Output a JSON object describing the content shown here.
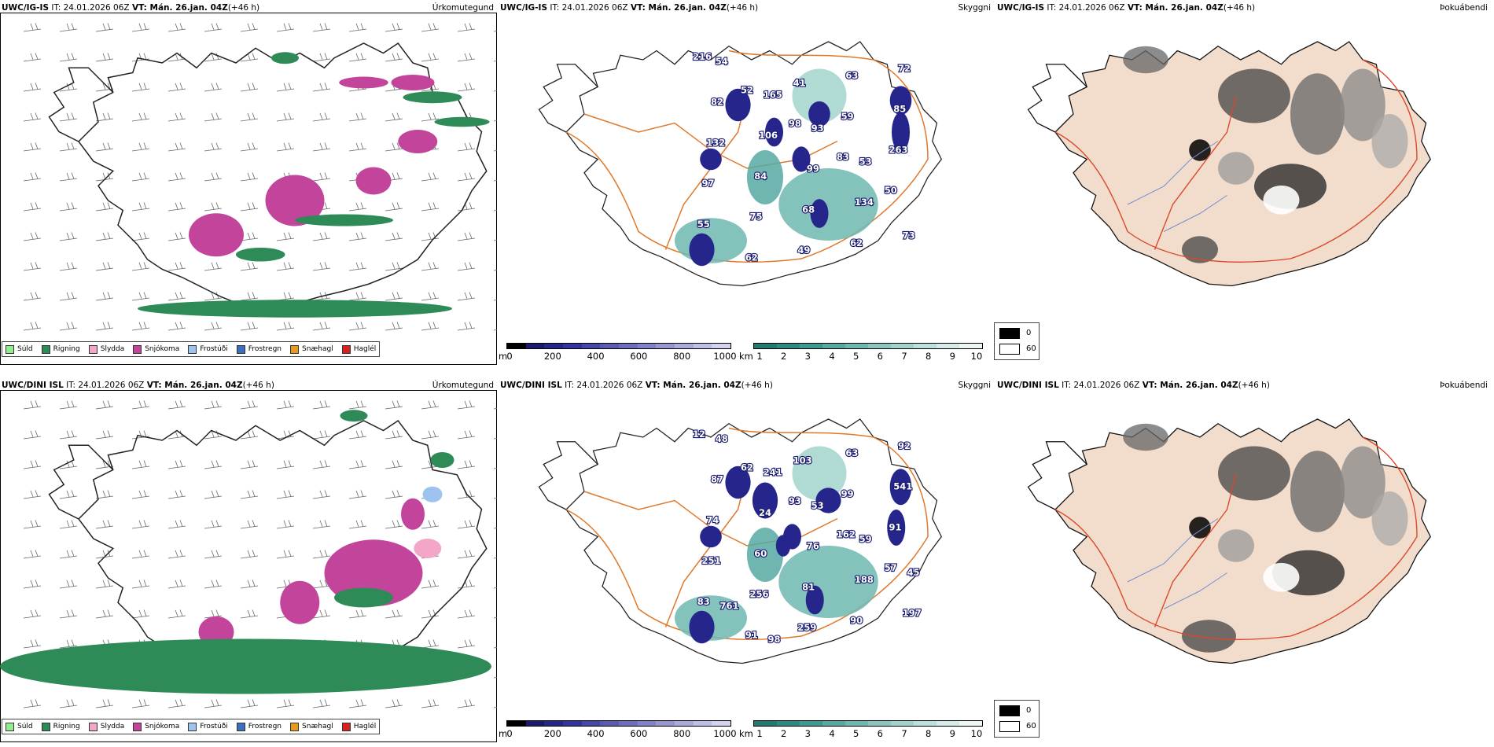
{
  "rows": [
    {
      "model": "UWC/IG-IS",
      "it_label": "IT:",
      "it_value": "24.01.2026 06Z",
      "vt_label": "VT:",
      "vt_value": "Mán. 26.jan. 04Z",
      "lead": "(+46 h)"
    },
    {
      "model": "UWC/DINI ISL",
      "it_label": "IT:",
      "it_value": "24.01.2026 06Z",
      "vt_label": "VT:",
      "vt_value": "Mán. 26.jan. 04Z",
      "lead": "(+46 h)"
    }
  ],
  "panel_titles": {
    "precip": "Úrkomutegund",
    "cloud": "Skyggni",
    "fog": "Þokuábendi"
  },
  "precip_legend": [
    {
      "label": "Súld",
      "color": "#90ee90"
    },
    {
      "label": "Rigning",
      "color": "#2e8b57"
    },
    {
      "label": "Slydda",
      "color": "#f4a6c8"
    },
    {
      "label": "Snjókoma",
      "color": "#c2459b"
    },
    {
      "label": "Frostúði",
      "color": "#9ec3ee"
    },
    {
      "label": "Frostregn",
      "color": "#3a6fc4"
    },
    {
      "label": "Snæhagl",
      "color": "#e69a1f"
    },
    {
      "label": "Haglél",
      "color": "#d92020"
    }
  ],
  "cloud_base_bar": {
    "unit": "m",
    "ticks": [
      "0",
      "200",
      "400",
      "600",
      "800",
      "1000"
    ],
    "colors": [
      "#000000",
      "#1a1a70",
      "#25258c",
      "#3232a0",
      "#4646aa",
      "#5a5ab4",
      "#6e6ebe",
      "#8282c8",
      "#9696d2",
      "#aaaadc",
      "#bebee6",
      "#d2d2f0"
    ]
  },
  "visibility_bar": {
    "unit": "km",
    "ticks": [
      "1",
      "2",
      "3",
      "4",
      "5",
      "6",
      "7",
      "8",
      "9",
      "10"
    ],
    "colors": [
      "#1f7a72",
      "#2d8a82",
      "#3c9a92",
      "#55a9a1",
      "#6eb8b0",
      "#88c6bf",
      "#a2d3cd",
      "#bce0db",
      "#d5ece9",
      "#ecf7f5"
    ]
  },
  "fog_legend": [
    {
      "label": "0",
      "color": "#000000"
    },
    {
      "label": "60",
      "color": "#ffffff"
    }
  ],
  "cloud_labels_top": [
    "216",
    "52",
    "98",
    "83",
    "50",
    "55",
    "62",
    "41",
    "59",
    "263",
    "97",
    "75",
    "49",
    "63",
    "85",
    "132",
    "84",
    "68",
    "62",
    "72",
    "82",
    "106",
    "99",
    "134",
    "73",
    "54",
    "165",
    "93",
    "53"
  ],
  "cloud_labels_bottom": [
    "12",
    "62",
    "93",
    "162",
    "57",
    "83",
    "91",
    "103",
    "99",
    "91",
    "251",
    "256",
    "259",
    "63",
    "541",
    "74",
    "60",
    "81",
    "90",
    "92",
    "87",
    "24",
    "76",
    "188",
    "197",
    "48",
    "241",
    "53",
    "59",
    "45",
    "761",
    "98"
  ],
  "colors": {
    "land_fog": "#f2dccb",
    "road_orange": "#e0782a",
    "road_red": "#d9482a",
    "river": "#7a8fd6",
    "coast": "#111111"
  }
}
